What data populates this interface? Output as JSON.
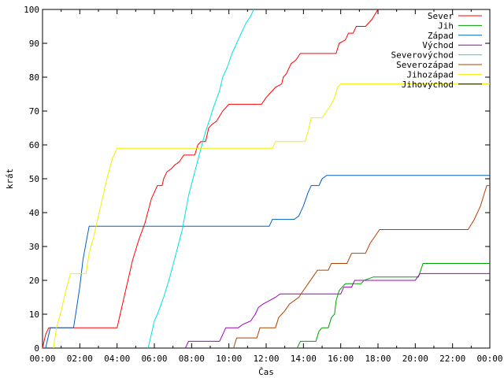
{
  "chart_data": {
    "type": "line",
    "xlabel": "Čas",
    "ylabel": "krát",
    "xlim": [
      "00:00",
      "24:00"
    ],
    "ylim": [
      0,
      100
    ],
    "x_ticks": [
      "00:00",
      "02:00",
      "04:00",
      "06:00",
      "08:00",
      "10:00",
      "12:00",
      "14:00",
      "16:00",
      "18:00",
      "20:00",
      "22:00",
      "00:00"
    ],
    "y_ticks": [
      0,
      10,
      20,
      30,
      40,
      50,
      60,
      70,
      80,
      90,
      100
    ],
    "legend_position": "top-right",
    "grid": false,
    "series": [
      {
        "name": "Sever",
        "color": "#ff0000",
        "step": true,
        "points": [
          [
            "00:00",
            0
          ],
          [
            "00:10",
            4
          ],
          [
            "00:20",
            6
          ],
          [
            "04:00",
            6
          ],
          [
            "04:10",
            10
          ],
          [
            "04:30",
            18
          ],
          [
            "04:50",
            26
          ],
          [
            "05:10",
            32
          ],
          [
            "05:30",
            37
          ],
          [
            "05:50",
            44
          ],
          [
            "06:10",
            48
          ],
          [
            "06:25",
            48
          ],
          [
            "06:30",
            50
          ],
          [
            "06:40",
            52
          ],
          [
            "06:55",
            53
          ],
          [
            "07:05",
            54
          ],
          [
            "07:20",
            55
          ],
          [
            "07:35",
            57
          ],
          [
            "08:10",
            57
          ],
          [
            "08:20",
            60
          ],
          [
            "08:30",
            61
          ],
          [
            "08:45",
            61
          ],
          [
            "08:55",
            65
          ],
          [
            "09:05",
            66
          ],
          [
            "09:20",
            67
          ],
          [
            "09:40",
            70
          ],
          [
            "10:00",
            72
          ],
          [
            "11:45",
            72
          ],
          [
            "12:00",
            74
          ],
          [
            "12:10",
            75
          ],
          [
            "12:30",
            77
          ],
          [
            "12:50",
            78
          ],
          [
            "12:55",
            80
          ],
          [
            "13:05",
            81
          ],
          [
            "13:20",
            84
          ],
          [
            "13:35",
            85
          ],
          [
            "13:50",
            87
          ],
          [
            "15:45",
            87
          ],
          [
            "15:55",
            90
          ],
          [
            "16:15",
            91
          ],
          [
            "16:25",
            93
          ],
          [
            "16:40",
            93
          ],
          [
            "16:50",
            95
          ],
          [
            "17:20",
            95
          ],
          [
            "17:40",
            97
          ],
          [
            "18:00",
            100
          ]
        ]
      },
      {
        "name": "Jih",
        "color": "#00a000",
        "step": true,
        "points": [
          [
            "13:40",
            0
          ],
          [
            "13:50",
            2
          ],
          [
            "14:40",
            2
          ],
          [
            "14:50",
            5
          ],
          [
            "15:00",
            6
          ],
          [
            "15:20",
            6
          ],
          [
            "15:30",
            9
          ],
          [
            "15:40",
            10
          ],
          [
            "15:45",
            14
          ],
          [
            "15:55",
            17
          ],
          [
            "16:05",
            18
          ],
          [
            "16:15",
            19
          ],
          [
            "17:05",
            19
          ],
          [
            "17:15",
            20
          ],
          [
            "17:45",
            21
          ],
          [
            "20:10",
            21
          ],
          [
            "20:25",
            25
          ],
          [
            "24:00",
            25
          ]
        ]
      },
      {
        "name": "Západ",
        "color": "#0060c0",
        "step": true,
        "points": [
          [
            "00:10",
            0
          ],
          [
            "00:25",
            6
          ],
          [
            "01:40",
            6
          ],
          [
            "01:50",
            12
          ],
          [
            "02:00",
            18
          ],
          [
            "02:10",
            26
          ],
          [
            "02:20",
            31
          ],
          [
            "02:30",
            36
          ],
          [
            "12:10",
            36
          ],
          [
            "12:20",
            38
          ],
          [
            "13:30",
            38
          ],
          [
            "13:45",
            39
          ],
          [
            "14:00",
            42
          ],
          [
            "14:15",
            46
          ],
          [
            "14:25",
            48
          ],
          [
            "14:50",
            48
          ],
          [
            "15:00",
            50
          ],
          [
            "15:15",
            51
          ],
          [
            "24:00",
            51
          ]
        ]
      },
      {
        "name": "Východ",
        "color": "#a000c0",
        "step": true,
        "points": [
          [
            "07:40",
            0
          ],
          [
            "07:50",
            2
          ],
          [
            "09:30",
            2
          ],
          [
            "09:40",
            4
          ],
          [
            "09:50",
            6
          ],
          [
            "10:30",
            6
          ],
          [
            "10:45",
            7
          ],
          [
            "11:10",
            8
          ],
          [
            "11:25",
            10
          ],
          [
            "11:35",
            12
          ],
          [
            "11:50",
            13
          ],
          [
            "12:10",
            14
          ],
          [
            "12:30",
            15
          ],
          [
            "12:45",
            16
          ],
          [
            "16:00",
            16
          ],
          [
            "16:10",
            18
          ],
          [
            "16:35",
            18
          ],
          [
            "16:45",
            20
          ],
          [
            "20:00",
            20
          ],
          [
            "20:15",
            22
          ],
          [
            "24:00",
            22
          ]
        ]
      },
      {
        "name": "Severovýchod",
        "color": "#00e0e0",
        "step": true,
        "points": [
          [
            "05:40",
            0
          ],
          [
            "05:50",
            4
          ],
          [
            "06:00",
            8
          ],
          [
            "06:10",
            10
          ],
          [
            "06:30",
            15
          ],
          [
            "06:50",
            21
          ],
          [
            "07:10",
            28
          ],
          [
            "07:30",
            35
          ],
          [
            "07:50",
            45
          ],
          [
            "08:10",
            52
          ],
          [
            "08:30",
            59
          ],
          [
            "08:45",
            64
          ],
          [
            "09:00",
            68
          ],
          [
            "09:10",
            71
          ],
          [
            "09:30",
            76
          ],
          [
            "09:40",
            80
          ],
          [
            "09:55",
            83
          ],
          [
            "10:10",
            87
          ],
          [
            "10:25",
            90
          ],
          [
            "10:40",
            93
          ],
          [
            "10:55",
            96
          ],
          [
            "11:10",
            98
          ],
          [
            "11:20",
            100
          ]
        ]
      },
      {
        "name": "Severozápad",
        "color": "#b04000",
        "step": true,
        "points": [
          [
            "10:15",
            0
          ],
          [
            "10:25",
            3
          ],
          [
            "11:30",
            3
          ],
          [
            "11:40",
            6
          ],
          [
            "12:30",
            6
          ],
          [
            "12:40",
            9
          ],
          [
            "13:00",
            11
          ],
          [
            "13:15",
            13
          ],
          [
            "13:30",
            14
          ],
          [
            "13:45",
            15
          ],
          [
            "14:00",
            17
          ],
          [
            "14:15",
            19
          ],
          [
            "14:30",
            21
          ],
          [
            "14:45",
            23
          ],
          [
            "15:00",
            23
          ],
          [
            "15:20",
            23
          ],
          [
            "15:30",
            25
          ],
          [
            "16:20",
            25
          ],
          [
            "16:35",
            28
          ],
          [
            "17:20",
            28
          ],
          [
            "17:35",
            31
          ],
          [
            "17:50",
            33
          ],
          [
            "18:05",
            35
          ],
          [
            "22:50",
            35
          ],
          [
            "23:10",
            38
          ],
          [
            "23:30",
            42
          ],
          [
            "23:50",
            48
          ],
          [
            "24:00",
            48
          ]
        ]
      },
      {
        "name": "Jihozápad",
        "color": "#f0f000",
        "step": true,
        "points": [
          [
            "00:35",
            0
          ],
          [
            "00:45",
            6
          ],
          [
            "01:00",
            11
          ],
          [
            "01:15",
            17
          ],
          [
            "01:30",
            22
          ],
          [
            "02:20",
            22
          ],
          [
            "02:30",
            28
          ],
          [
            "02:45",
            33
          ],
          [
            "03:00",
            39
          ],
          [
            "03:15",
            45
          ],
          [
            "03:30",
            51
          ],
          [
            "03:45",
            56
          ],
          [
            "04:00",
            59
          ],
          [
            "12:20",
            59
          ],
          [
            "12:30",
            61
          ],
          [
            "14:05",
            61
          ],
          [
            "14:15",
            64
          ],
          [
            "14:25",
            68
          ],
          [
            "15:00",
            68
          ],
          [
            "15:15",
            70
          ],
          [
            "15:30",
            72
          ],
          [
            "15:40",
            74
          ],
          [
            "15:50",
            77
          ],
          [
            "16:00",
            78
          ],
          [
            "24:00",
            78
          ]
        ]
      },
      {
        "name": "Jihovýchod",
        "color": "#000000",
        "step": true,
        "points": []
      }
    ]
  }
}
